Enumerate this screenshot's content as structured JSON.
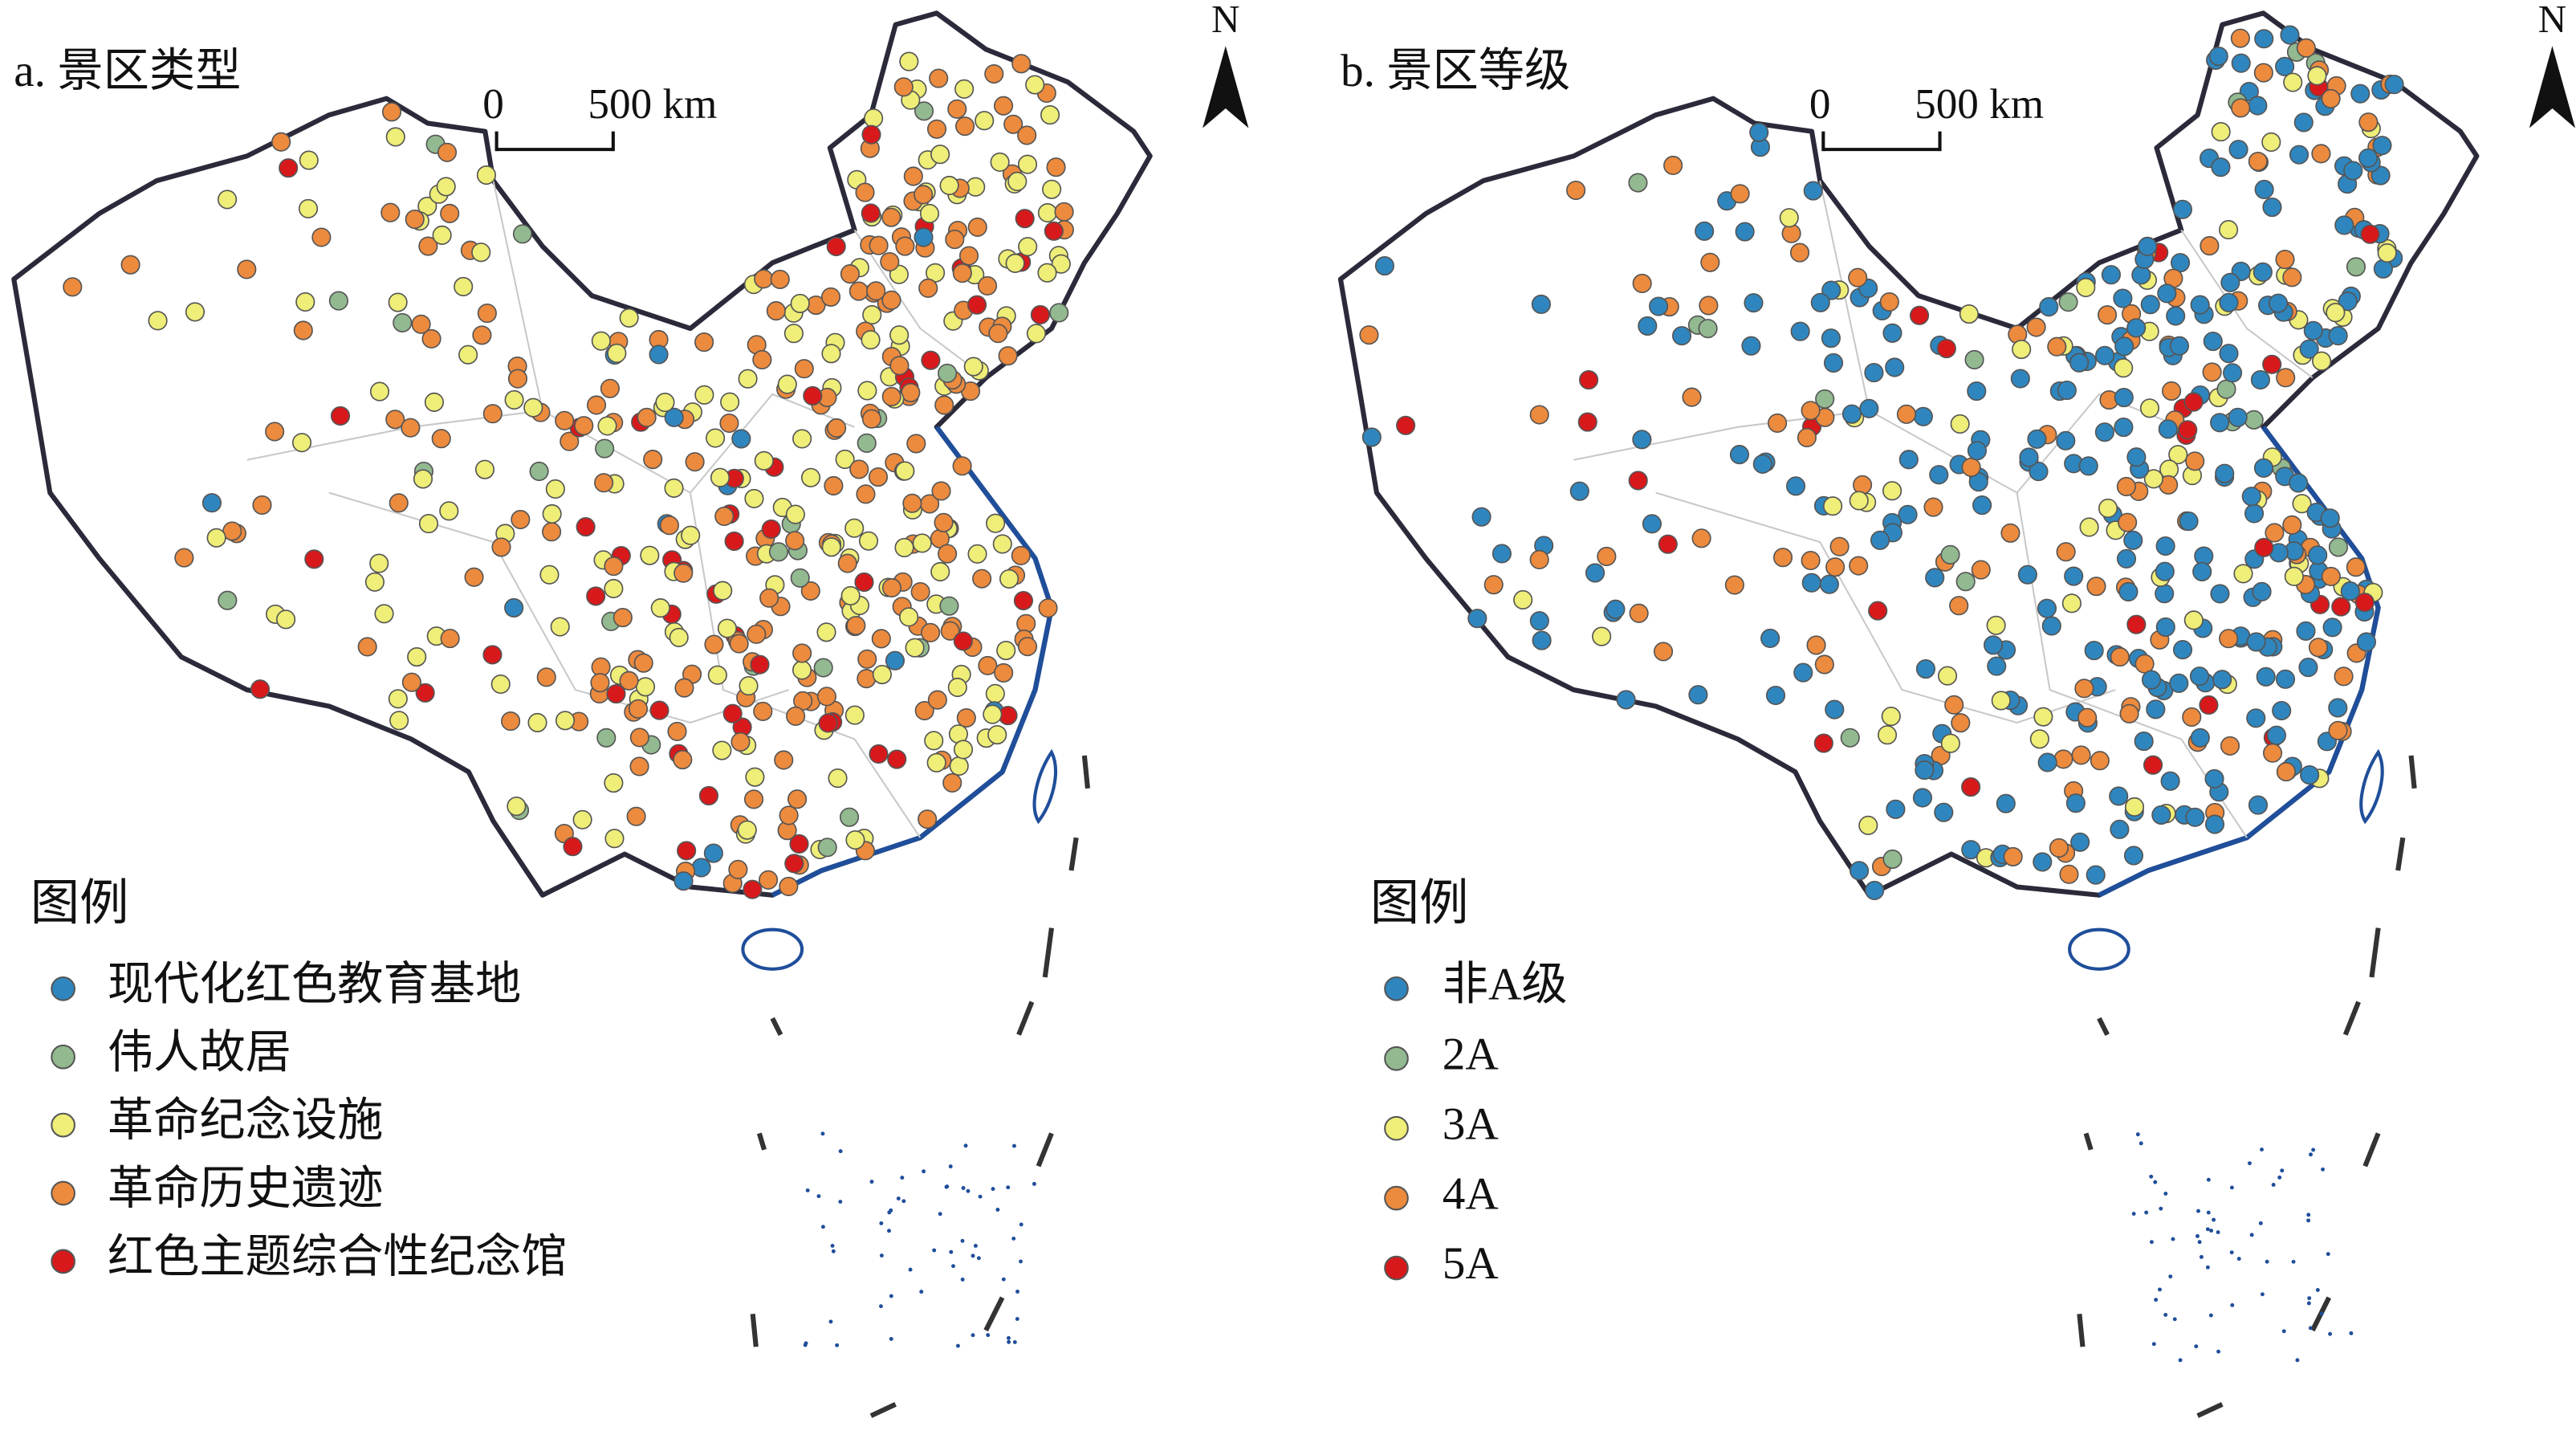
{
  "panels": [
    {
      "title": "a. 景区类型",
      "scale_zero": "0",
      "scale_label": "500 km",
      "north": "N",
      "legend_title": "图例",
      "legend": [
        {
          "label": "现代化红色教育基地",
          "color": "#2f86be"
        },
        {
          "label": "伟人故居",
          "color": "#92b990"
        },
        {
          "label": "革命纪念设施",
          "color": "#eeee78"
        },
        {
          "label": "革命历史遗迹",
          "color": "#ec8a3e"
        },
        {
          "label": "红色主题综合性纪念馆",
          "color": "#d7191c"
        }
      ]
    },
    {
      "title": "b. 景区等级",
      "scale_zero": "0",
      "scale_label": "500 km",
      "north": "N",
      "legend_title": "图例",
      "legend": [
        {
          "label": "非A级",
          "color": "#2f86be"
        },
        {
          "label": "2A",
          "color": "#92b990"
        },
        {
          "label": "3A",
          "color": "#eeee78"
        },
        {
          "label": "4A",
          "color": "#ec8a3e"
        },
        {
          "label": "5A",
          "color": "#d7191c"
        }
      ]
    }
  ]
}
